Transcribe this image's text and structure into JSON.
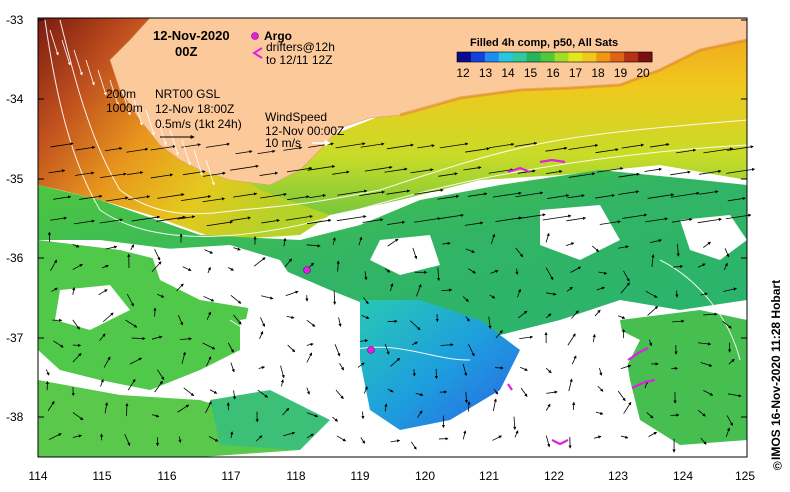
{
  "map": {
    "lon_range": [
      114,
      125
    ],
    "lat_range": [
      -38.5,
      -33
    ],
    "lon_ticks": [
      "114",
      "115",
      "116",
      "117",
      "118",
      "119",
      "120",
      "121",
      "122",
      "123",
      "124",
      "125"
    ],
    "lat_ticks": [
      "-33",
      "-34",
      "-35",
      "-36",
      "-37",
      "-38"
    ],
    "land_color": "#fcc99b",
    "no_data_color": "#ffffff"
  },
  "header": {
    "date": "12-Nov-2020",
    "hour": "00Z"
  },
  "legend": {
    "argo_label": "Argo",
    "drifters_label": "drifters@12h",
    "drifters_sub": "to 12/11 12Z",
    "argo_color": "#e020e0",
    "drifter_color": "#e020e0"
  },
  "isobaths": {
    "label_200": "200m",
    "label_1000": "1000m"
  },
  "current_ref": {
    "line1": "NRT00 GSL",
    "line2": "12-Nov 18:00Z",
    "line3": "0.5m/s (1kt 24h)"
  },
  "wind_ref": {
    "line1": "WindSpeed",
    "line2": "12-Nov 00:00Z",
    "line3": "10 m/s"
  },
  "colorbar": {
    "title": "Filled 4h comp, p50, All Sats",
    "labels": [
      "12",
      "13",
      "14",
      "15",
      "16",
      "17",
      "18",
      "19",
      "20"
    ],
    "colors": [
      "#0a0a8c",
      "#1440dc",
      "#1e8cf0",
      "#28c8dc",
      "#32c8a0",
      "#28b45a",
      "#50c83c",
      "#a0dc28",
      "#e6e61e",
      "#f0c81e",
      "#f09614",
      "#dc6414",
      "#b43214",
      "#7a1010"
    ]
  },
  "credit": "IMOS 16-Nov-2020 11:28 Hobart",
  "credit_symbol": "©"
}
